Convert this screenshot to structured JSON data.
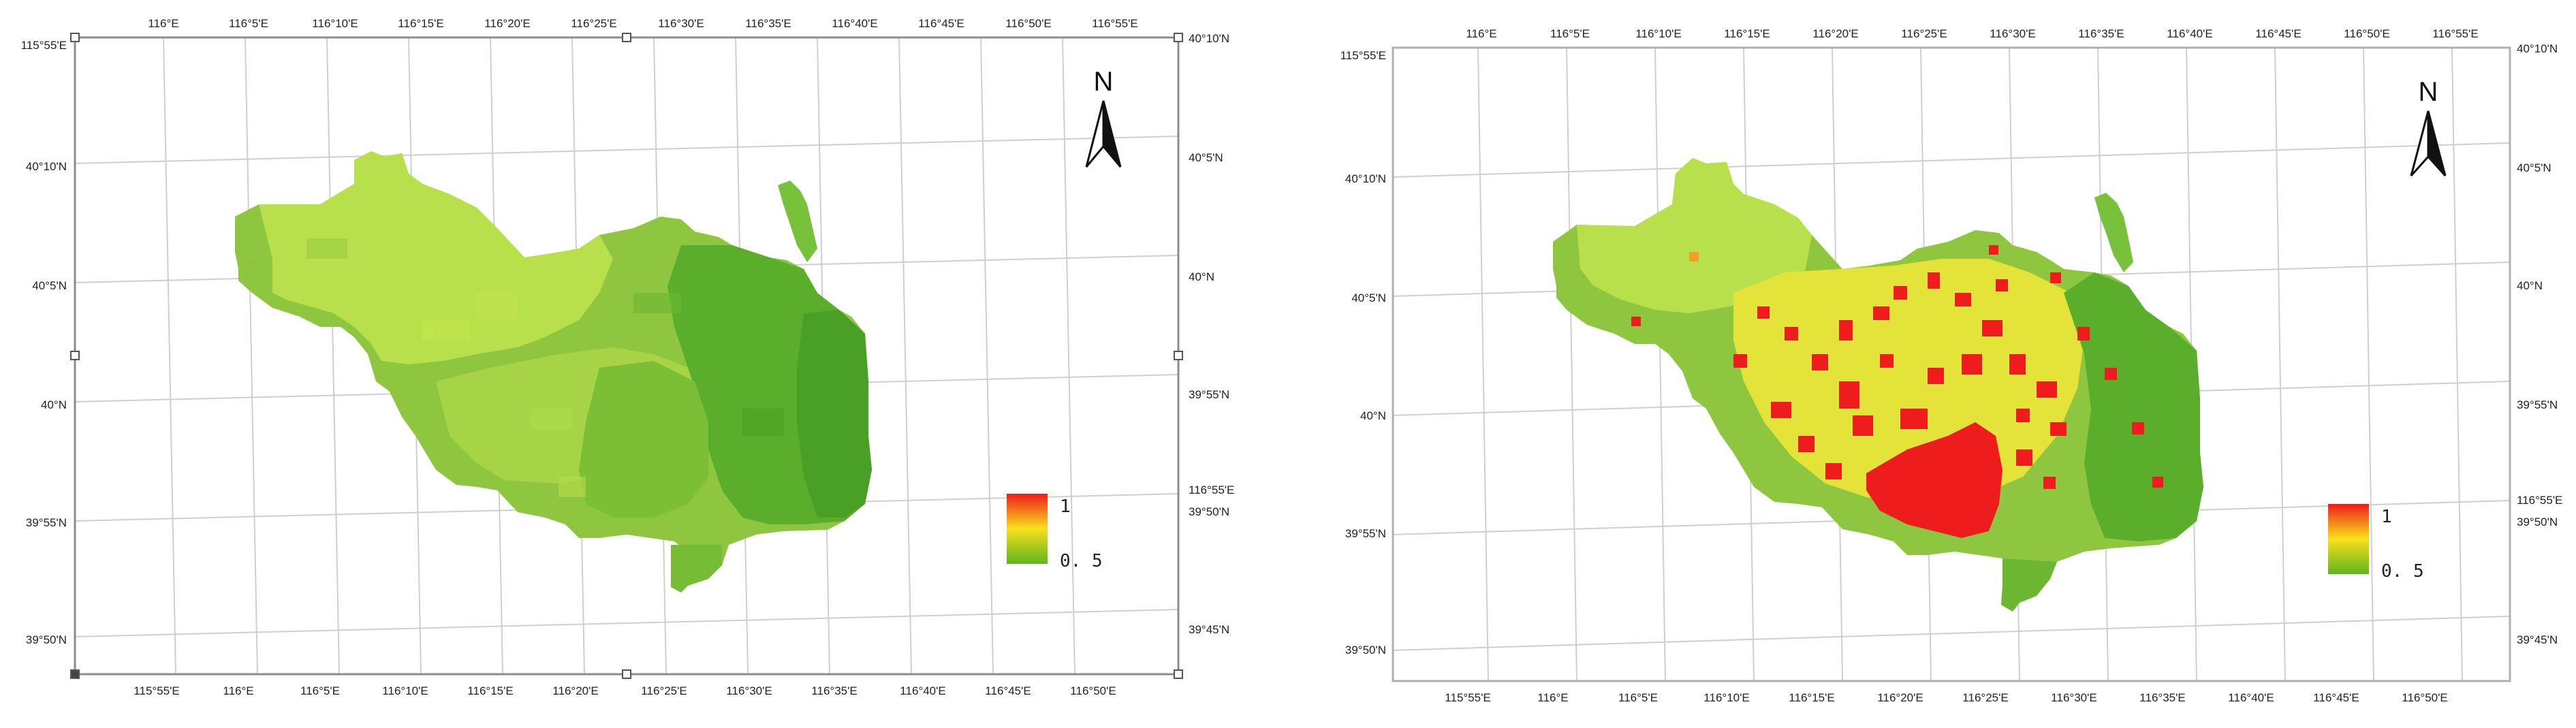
{
  "map_a": {
    "top_labels": [
      "116°E",
      "116°5'E",
      "116°10'E",
      "116°15'E",
      "116°20'E",
      "116°25'E",
      "116°30'E",
      "116°35'E",
      "116°40'E",
      "116°45'E",
      "116°50'E",
      "116°55'E"
    ],
    "bottom_labels": [
      "115°55'E",
      "116°E",
      "116°5'E",
      "116°10'E",
      "116°15'E",
      "116°20'E",
      "116°25'E",
      "116°30'E",
      "116°35'E",
      "116°40'E",
      "116°45'E",
      "116°50'E"
    ],
    "left_labels": [
      "115°55'E",
      "40°10'N",
      "40°5'N",
      "40°N",
      "39°55'N",
      "39°50'N"
    ],
    "right_labels": [
      "40°10'N",
      "40°5'N",
      "40°N",
      "39°55'N",
      "116°55'E",
      "39°50'N",
      "39°45'N"
    ],
    "north": "N",
    "legend": {
      "max": "1",
      "min": "0. 5"
    },
    "frame_color": "#888888",
    "grid_color": "#cccccc"
  },
  "map_b": {
    "top_labels": [
      "116°E",
      "116°5'E",
      "116°10'E",
      "116°15'E",
      "116°20'E",
      "116°25'E",
      "116°30'E",
      "116°35'E",
      "116°40'E",
      "116°45'E",
      "116°50'E",
      "116°55'E"
    ],
    "bottom_labels": [
      "115°55'E",
      "116°E",
      "116°5'E",
      "116°10'E",
      "116°15'E",
      "116°20'E",
      "116°25'E",
      "116°30'E",
      "116°35'E",
      "116°40'E",
      "116°45'E",
      "116°50'E"
    ],
    "left_labels": [
      "115°55'E",
      "40°10'N",
      "40°5'N",
      "40°N",
      "39°55'N",
      "39°50'N"
    ],
    "right_labels": [
      "40°10'N",
      "40°5'N",
      "40°N",
      "39°55'N",
      "116°55'E",
      "39°50'N",
      "39°45'N"
    ],
    "north": "N",
    "legend": {
      "max": "1",
      "min": "0. 5"
    },
    "frame_color": "#aaaaaa",
    "grid_color": "#cccccc"
  },
  "legend_colors": [
    "#ee1c1c",
    "#f7e11a",
    "#5fb61e"
  ]
}
